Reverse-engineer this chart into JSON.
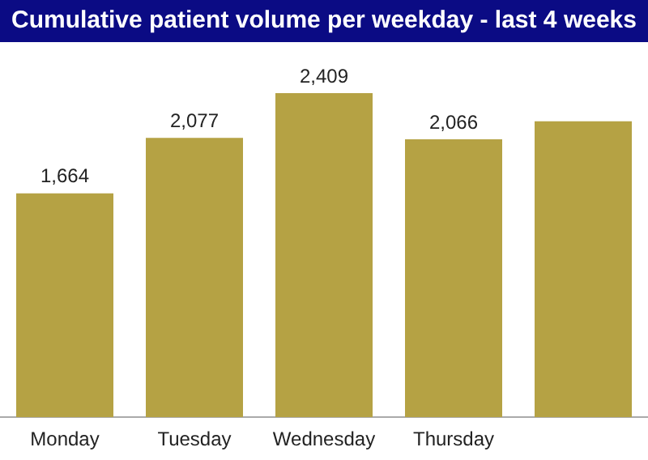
{
  "chart_data": {
    "type": "bar",
    "title": "Cumulative patient volume per weekday - last 4 weeks",
    "categories": [
      "Monday",
      "Tuesday",
      "Wednesday",
      "Thursday",
      null
    ],
    "values": [
      1664,
      2077,
      2409,
      2066,
      2200
    ],
    "value_labels": [
      "1,664",
      "2,077",
      "2,409",
      "2,066",
      null
    ],
    "color": "#b5a244",
    "grid": false,
    "legend": false
  }
}
